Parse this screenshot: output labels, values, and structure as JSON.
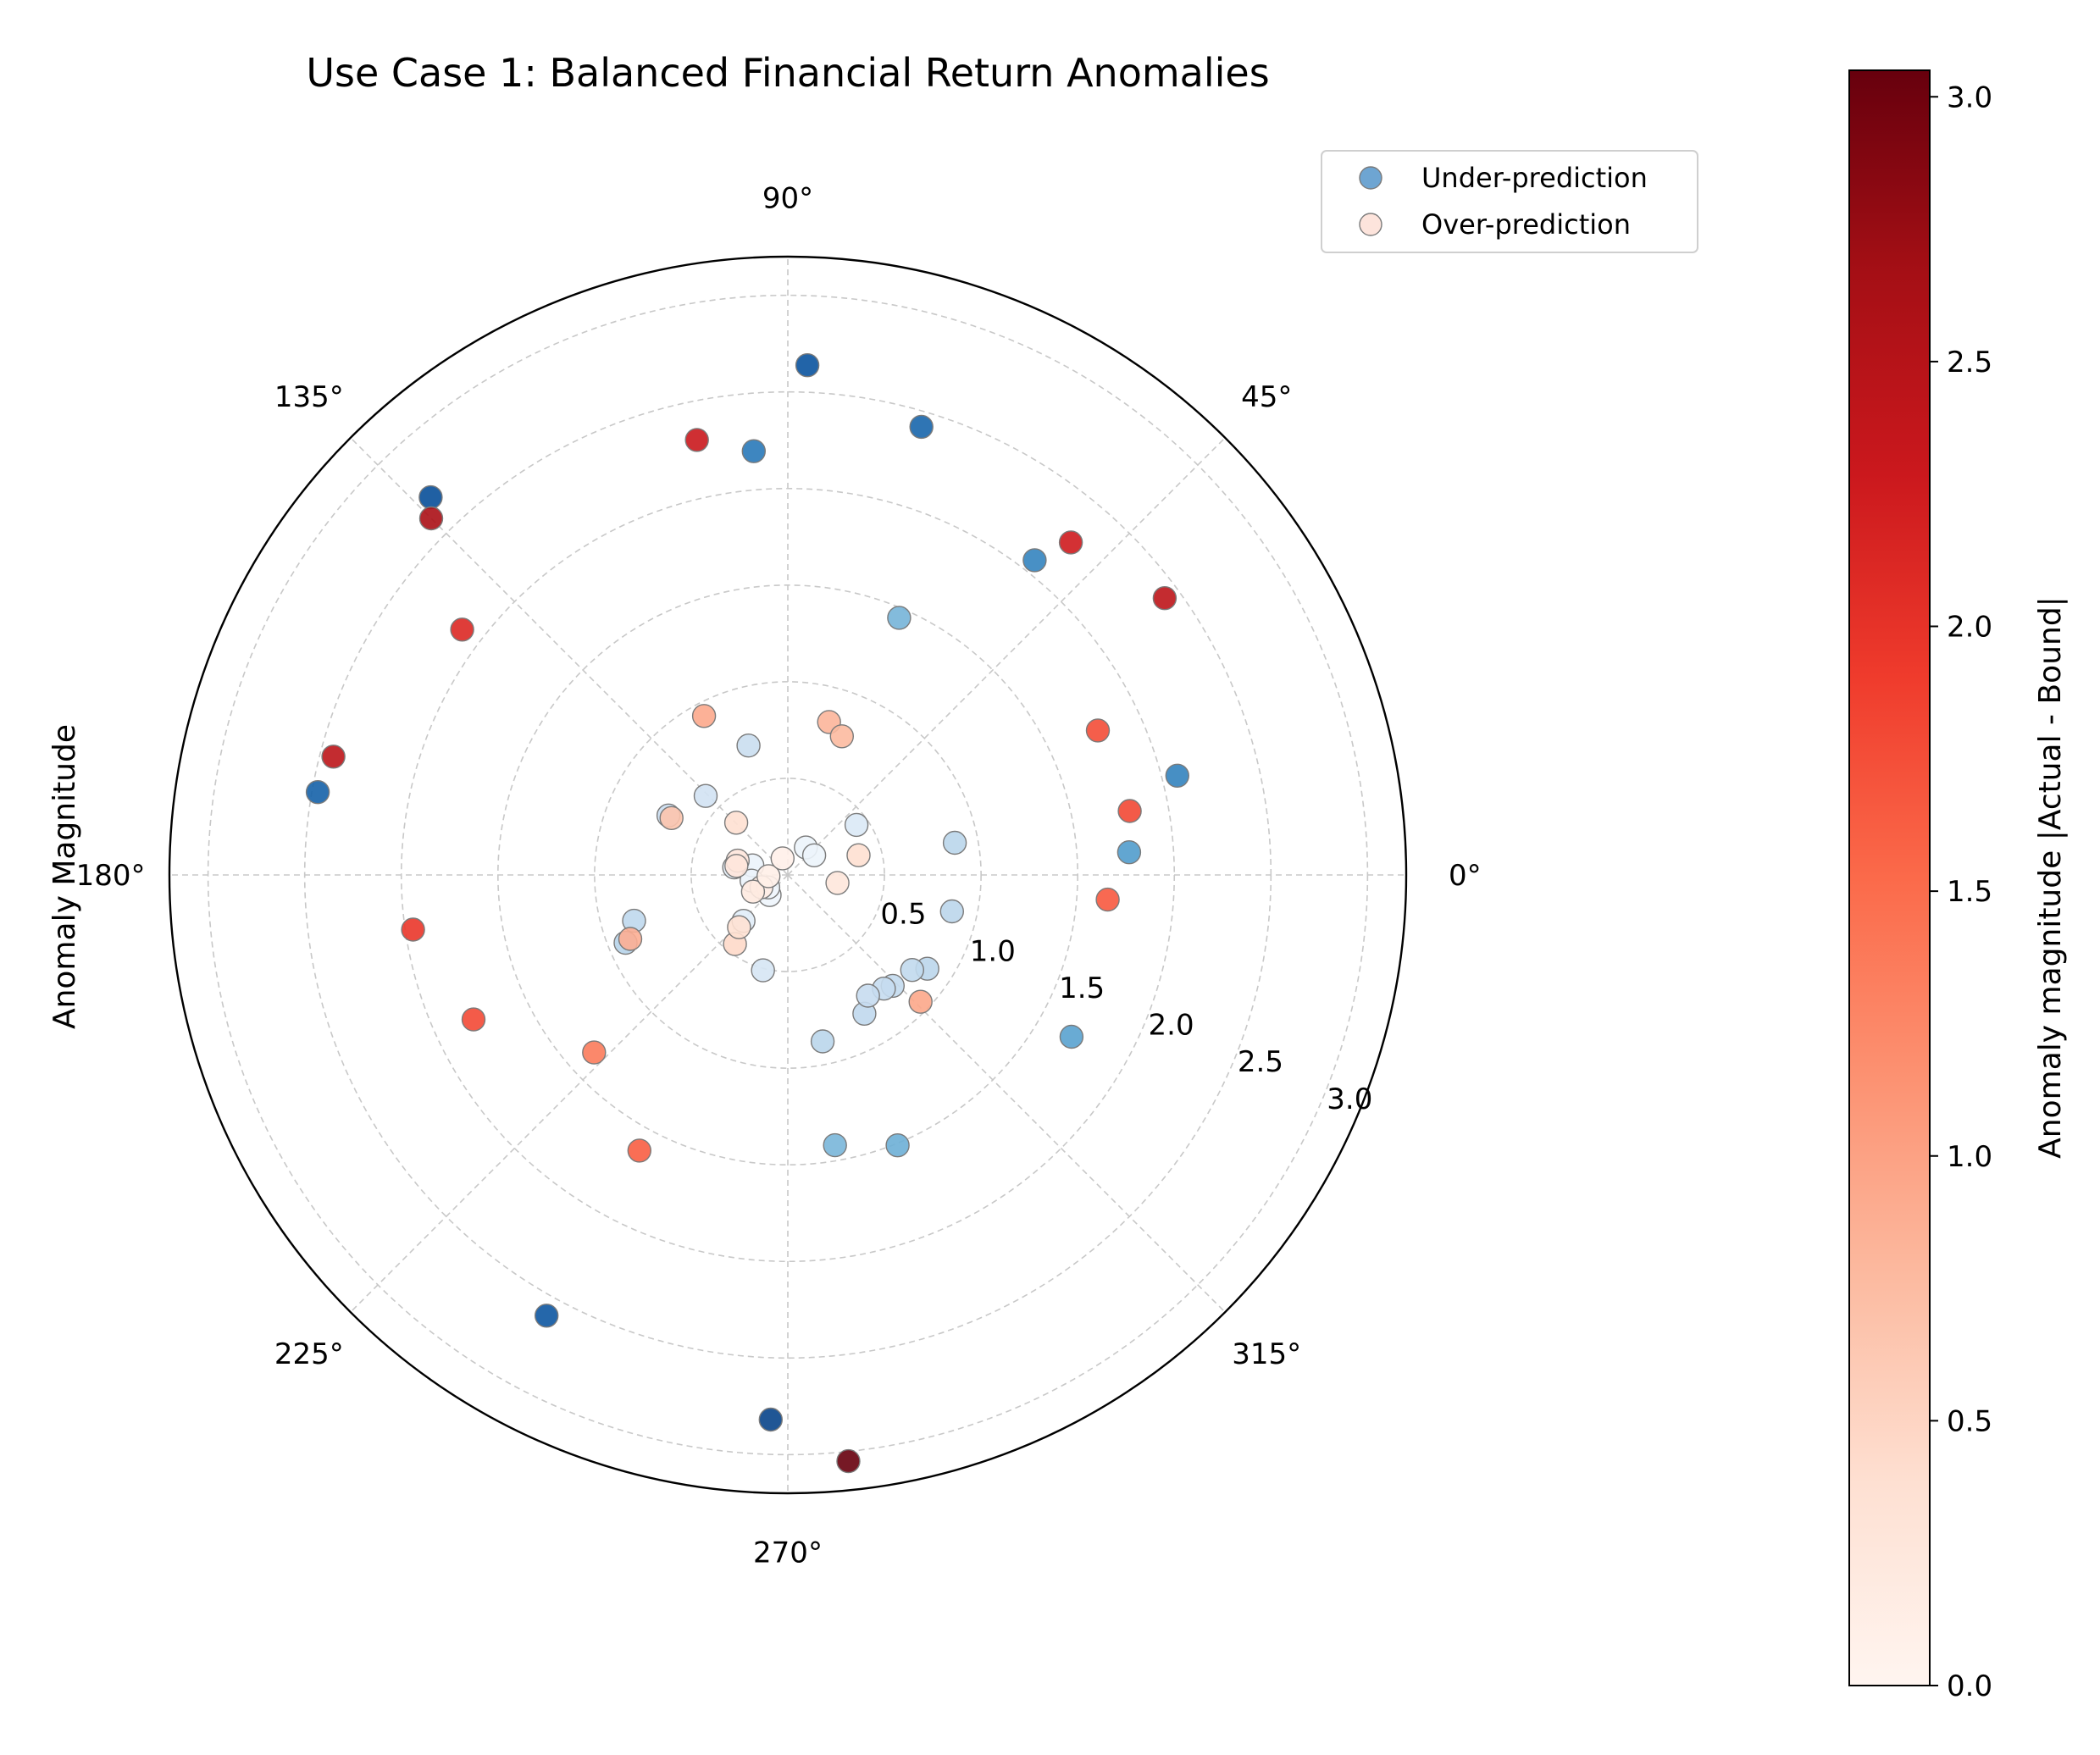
{
  "chart_data": {
    "type": "scatter",
    "projection": "polar",
    "title": "Use Case 1: Balanced Financial Return Anomalies",
    "ylabel": "Anomaly Magnitude",
    "r_lim": [
      0,
      3.2
    ],
    "r_ticks": [
      "0.5",
      "1.0",
      "1.5",
      "2.0",
      "2.5",
      "3.0"
    ],
    "r_tick_values": [
      0.5,
      1.0,
      1.5,
      2.0,
      2.5,
      3.0
    ],
    "r_label_angle_deg": 337.5,
    "theta_ticks": [
      "0°",
      "45°",
      "90°",
      "135°",
      "180°",
      "225°",
      "270°",
      "315°"
    ],
    "theta_tick_values": [
      0,
      45,
      90,
      135,
      180,
      225,
      270,
      315
    ],
    "grid": true,
    "legend": {
      "placement": "top-right",
      "entries": [
        "Under-prediction",
        "Over-prediction"
      ],
      "colors": [
        "#6ea5d2",
        "#fde4dc"
      ]
    },
    "colorbar": {
      "label": "Anomaly magnitude |Actual - Bound|",
      "min": 0.0,
      "max": 3.05,
      "ticks": [
        "0.0",
        "0.5",
        "1.0",
        "1.5",
        "2.0",
        "2.5",
        "3.0"
      ],
      "tick_values": [
        0.0,
        0.5,
        1.0,
        1.5,
        2.0,
        2.5,
        3.0
      ],
      "colormap": "Reds"
    },
    "series": [
      {
        "name": "Under-prediction",
        "colormap": "Blues",
        "points": [
          {
            "theta": 87.8,
            "r": 2.64
          },
          {
            "theta": 73.4,
            "r": 2.42
          },
          {
            "theta": 94.6,
            "r": 2.2
          },
          {
            "theta": 51.9,
            "r": 2.07
          },
          {
            "theta": 66.6,
            "r": 1.45
          },
          {
            "theta": 133.4,
            "r": 2.69
          },
          {
            "theta": 170.0,
            "r": 2.47
          },
          {
            "theta": 14.3,
            "r": 2.08
          },
          {
            "theta": 3.8,
            "r": 1.77
          },
          {
            "theta": 330.3,
            "r": 1.69
          },
          {
            "theta": 241.3,
            "r": 2.6
          },
          {
            "theta": 268.2,
            "r": 2.82
          },
          {
            "theta": 292.1,
            "r": 1.51
          },
          {
            "theta": 279.9,
            "r": 1.42
          },
          {
            "theta": 106.9,
            "r": 0.7
          },
          {
            "theta": 136.1,
            "r": 0.59
          },
          {
            "theta": 153.5,
            "r": 0.69
          },
          {
            "theta": 36.1,
            "r": 0.44
          },
          {
            "theta": 56.6,
            "r": 0.17
          },
          {
            "theta": 36.7,
            "r": 0.17
          },
          {
            "theta": 172.0,
            "r": 0.28
          },
          {
            "theta": 164.9,
            "r": 0.19
          },
          {
            "theta": 188.9,
            "r": 0.19
          },
          {
            "theta": 227.8,
            "r": 0.14
          },
          {
            "theta": 212.6,
            "r": 0.12
          },
          {
            "theta": 202.7,
            "r": 0.91
          },
          {
            "theta": 196.6,
            "r": 0.83
          },
          {
            "theta": 226.0,
            "r": 0.33
          },
          {
            "theta": 255.4,
            "r": 0.51
          },
          {
            "theta": 10.9,
            "r": 0.88
          },
          {
            "theta": 347.5,
            "r": 0.87
          },
          {
            "theta": 326.1,
            "r": 0.87
          },
          {
            "theta": 322.6,
            "r": 0.81
          },
          {
            "theta": 313.4,
            "r": 0.79
          },
          {
            "theta": 310.2,
            "r": 0.77
          },
          {
            "theta": 298.9,
            "r": 0.82
          },
          {
            "theta": 303.6,
            "r": 0.75
          },
          {
            "theta": 281.8,
            "r": 0.88
          }
        ]
      },
      {
        "name": "Over-prediction",
        "colormap": "Reds",
        "points": [
          {
            "theta": 135.0,
            "r": 2.61
          },
          {
            "theta": 101.8,
            "r": 2.3
          },
          {
            "theta": 143.0,
            "r": 2.11
          },
          {
            "theta": 49.6,
            "r": 2.26
          },
          {
            "theta": 36.3,
            "r": 2.42
          },
          {
            "theta": 25.0,
            "r": 1.77
          },
          {
            "theta": 10.6,
            "r": 1.8
          },
          {
            "theta": 355.6,
            "r": 1.66
          },
          {
            "theta": 165.4,
            "r": 2.43
          },
          {
            "theta": 188.3,
            "r": 1.96
          },
          {
            "theta": 204.7,
            "r": 1.79
          },
          {
            "theta": 222.5,
            "r": 1.36
          },
          {
            "theta": 241.7,
            "r": 1.62
          },
          {
            "theta": 275.9,
            "r": 3.05
          },
          {
            "theta": 316.3,
            "r": 0.95
          },
          {
            "theta": 117.8,
            "r": 0.93
          },
          {
            "theta": 74.9,
            "r": 0.82
          },
          {
            "theta": 68.7,
            "r": 0.77
          },
          {
            "theta": 153.9,
            "r": 0.67
          },
          {
            "theta": 134.6,
            "r": 0.38
          },
          {
            "theta": 164.1,
            "r": 0.27
          },
          {
            "theta": 170.0,
            "r": 0.27
          },
          {
            "theta": 202.1,
            "r": 0.88
          },
          {
            "theta": 232.6,
            "r": 0.45
          },
          {
            "theta": 227.0,
            "r": 0.37
          },
          {
            "theta": 204.8,
            "r": 0.15
          },
          {
            "theta": 205.6,
            "r": 0.2
          },
          {
            "theta": 183.6,
            "r": 0.1
          },
          {
            "theta": 107.7,
            "r": 0.09
          },
          {
            "theta": 15.6,
            "r": 0.38
          },
          {
            "theta": 350.9,
            "r": 0.26
          }
        ]
      }
    ]
  }
}
